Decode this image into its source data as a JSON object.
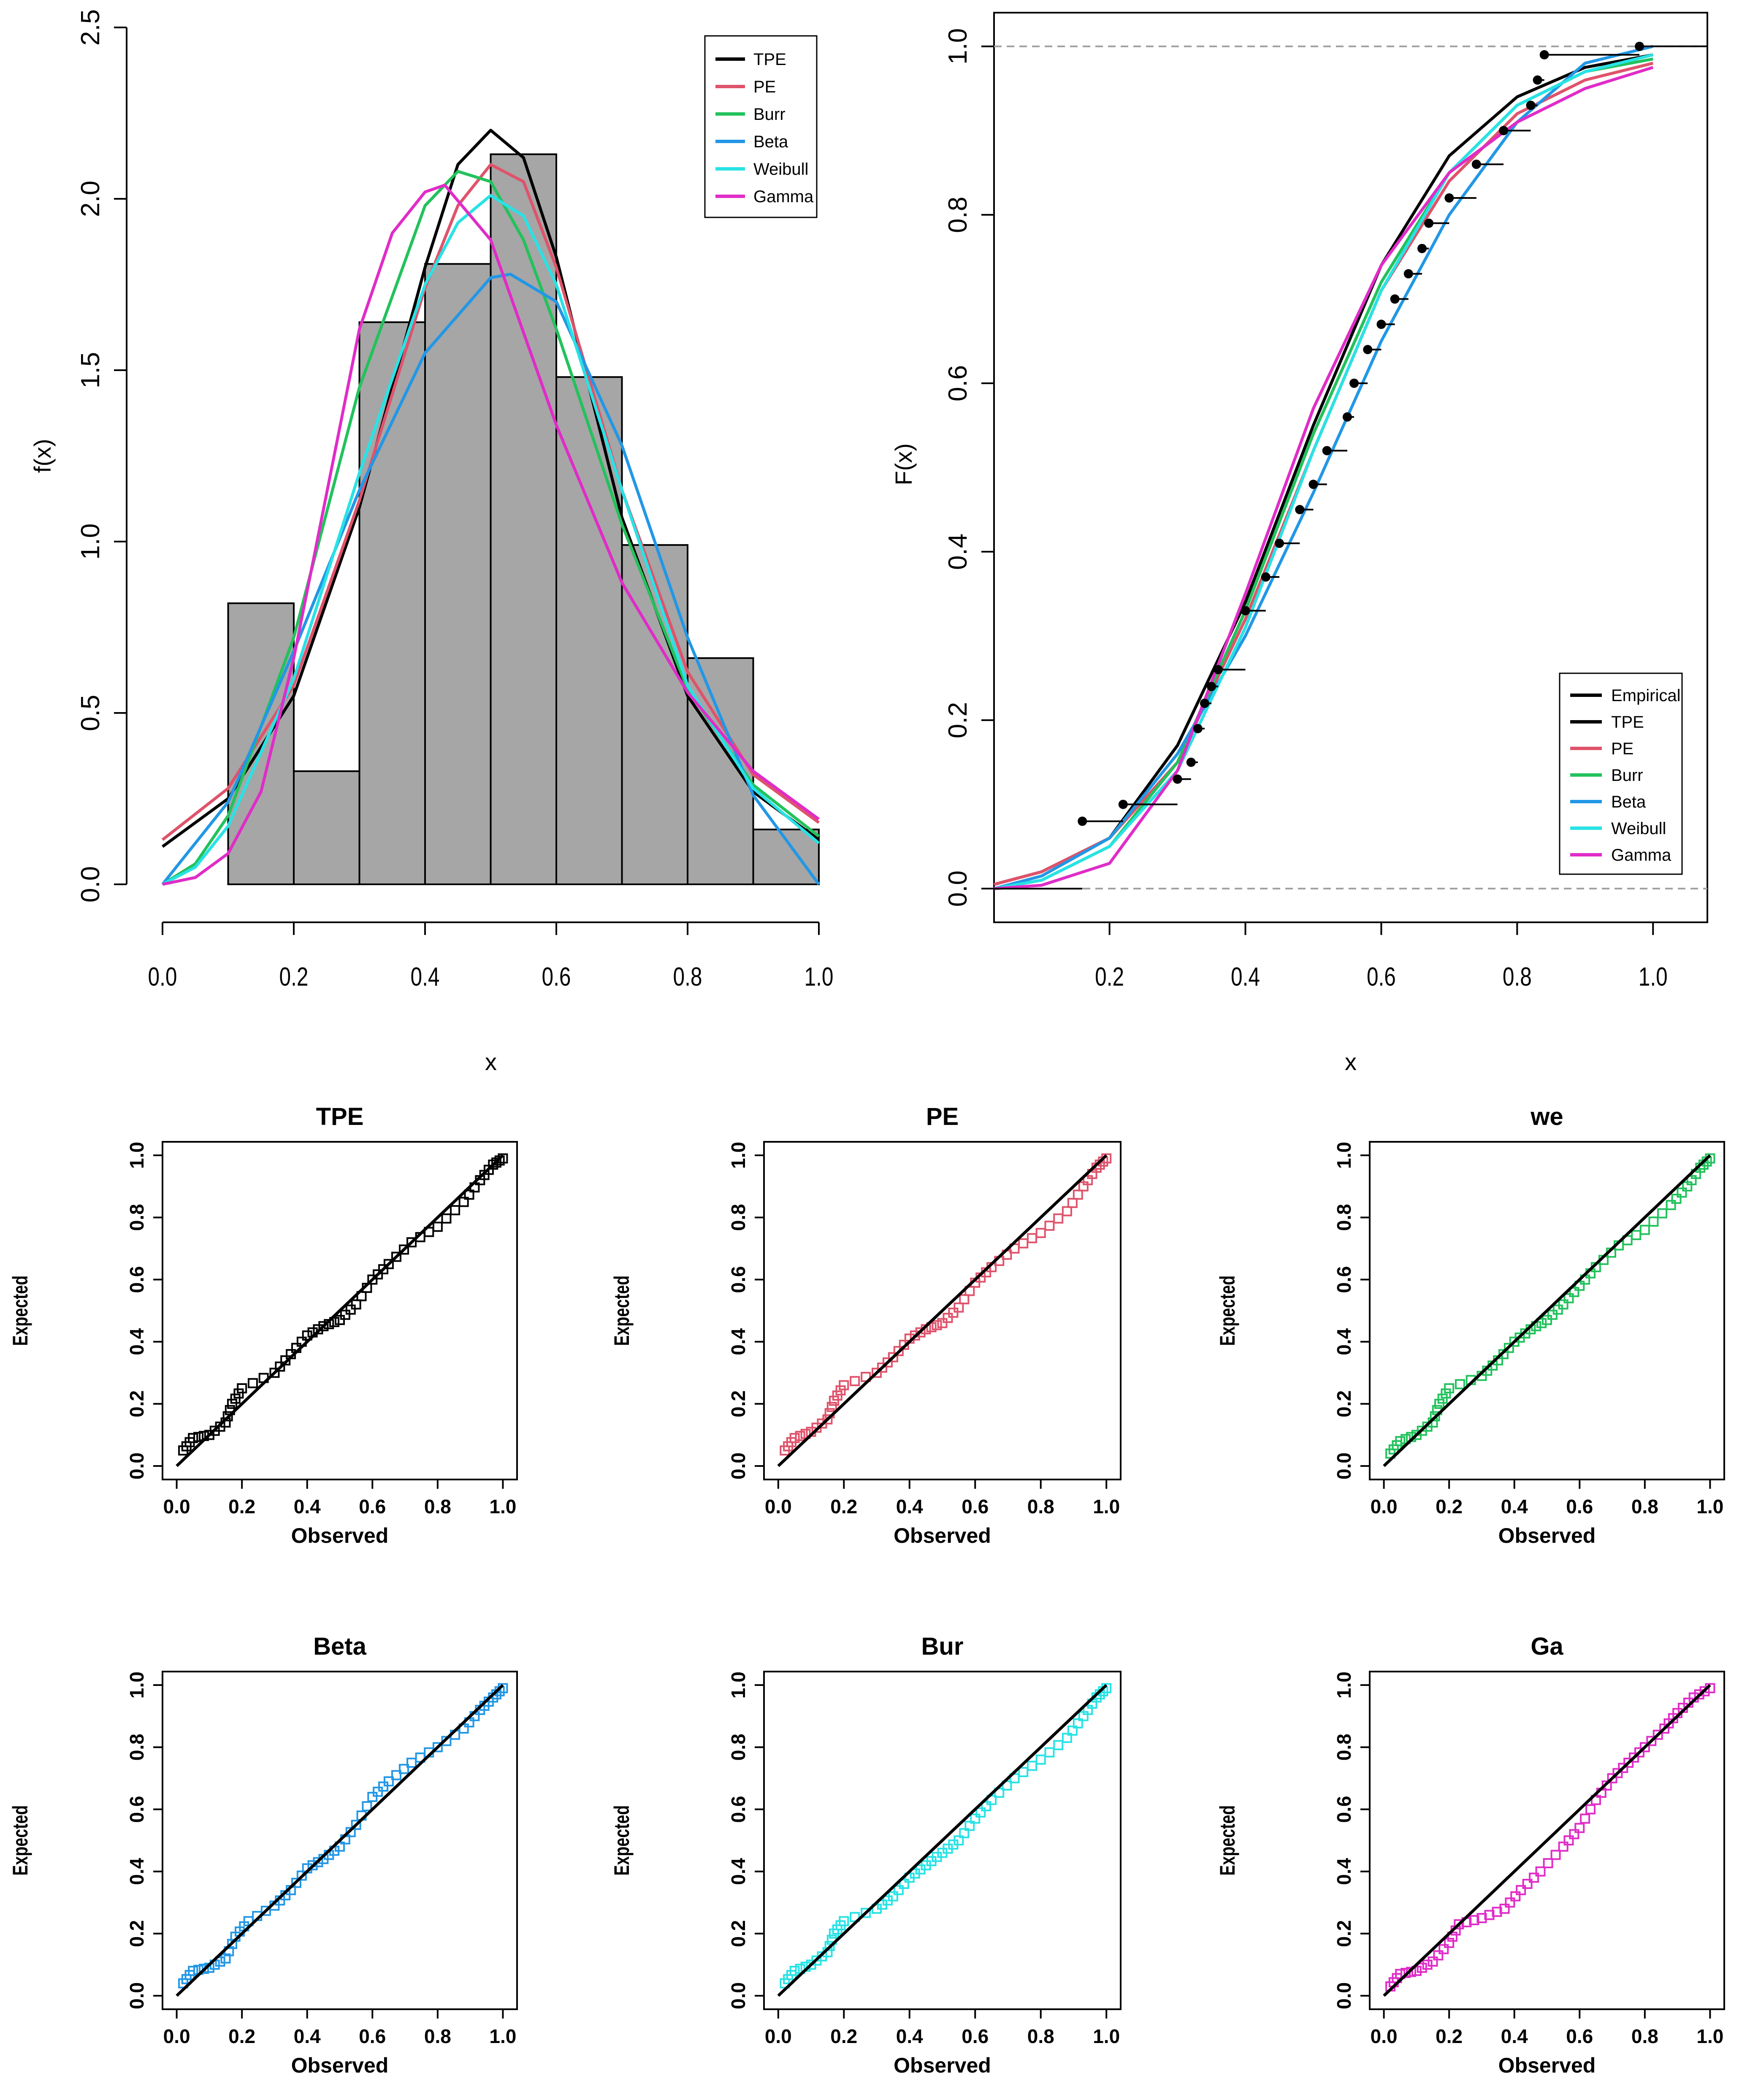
{
  "colors": {
    "TPE": "#000000",
    "PE": "#DF536B",
    "Burr": "#22C25C",
    "Beta": "#2297E6",
    "Weibull": "#28E2E5",
    "Gamma": "#E02CC8",
    "hist_fill": "#A6A6A6",
    "refline": "#A0A0A0"
  },
  "chart_data": [
    {
      "type": "bar",
      "subtype": "histogram_with_density_curves",
      "title": "",
      "xlabel": "x",
      "ylabel": "f(x)",
      "xlim": [
        0,
        1
      ],
      "ylim": [
        0,
        2.5
      ],
      "xticks": [
        "0.0",
        "0.2",
        "0.4",
        "0.6",
        "0.8",
        "1.0"
      ],
      "yticks": [
        "0.0",
        "0.5",
        "1.0",
        "1.5",
        "2.0",
        "2.5"
      ],
      "bins": [
        {
          "from": 0.1,
          "to": 0.2,
          "density": 0.82
        },
        {
          "from": 0.2,
          "to": 0.3,
          "density": 0.33
        },
        {
          "from": 0.3,
          "to": 0.4,
          "density": 1.64
        },
        {
          "from": 0.4,
          "to": 0.5,
          "density": 1.81
        },
        {
          "from": 0.5,
          "to": 0.6,
          "density": 2.13
        },
        {
          "from": 0.6,
          "to": 0.7,
          "density": 1.48
        },
        {
          "from": 0.7,
          "to": 0.8,
          "density": 0.99
        },
        {
          "from": 0.8,
          "to": 0.9,
          "density": 0.66
        },
        {
          "from": 0.9,
          "to": 1.0,
          "density": 0.16
        }
      ],
      "legend": {
        "position": "top-right",
        "entries": [
          "TPE",
          "PE",
          "Burr",
          "Beta",
          "Weibull",
          "Gamma"
        ]
      },
      "series": [
        {
          "name": "TPE",
          "x": [
            0,
            0.1,
            0.2,
            0.3,
            0.4,
            0.45,
            0.5,
            0.55,
            0.6,
            0.7,
            0.8,
            0.9,
            1.0
          ],
          "y": [
            0.11,
            0.25,
            0.55,
            1.1,
            1.8,
            2.1,
            2.2,
            2.12,
            1.83,
            1.07,
            0.55,
            0.27,
            0.13
          ]
        },
        {
          "name": "PE",
          "x": [
            0,
            0.1,
            0.2,
            0.3,
            0.4,
            0.45,
            0.5,
            0.55,
            0.6,
            0.7,
            0.8,
            0.9,
            1.0
          ],
          "y": [
            0.13,
            0.28,
            0.58,
            1.12,
            1.74,
            1.98,
            2.1,
            2.05,
            1.8,
            1.15,
            0.62,
            0.32,
            0.18
          ]
        },
        {
          "name": "Burr",
          "x": [
            0,
            0.05,
            0.1,
            0.2,
            0.3,
            0.4,
            0.45,
            0.5,
            0.55,
            0.6,
            0.7,
            0.8,
            0.9,
            1.0
          ],
          "y": [
            0,
            0.06,
            0.2,
            0.72,
            1.45,
            1.98,
            2.08,
            2.05,
            1.88,
            1.62,
            1.05,
            0.57,
            0.29,
            0.14
          ]
        },
        {
          "name": "Beta",
          "x": [
            0,
            0.1,
            0.2,
            0.3,
            0.4,
            0.5,
            0.53,
            0.6,
            0.7,
            0.8,
            0.9,
            1.0
          ],
          "y": [
            0,
            0.24,
            0.68,
            1.15,
            1.55,
            1.77,
            1.78,
            1.7,
            1.28,
            0.72,
            0.26,
            0
          ]
        },
        {
          "name": "Weibull",
          "x": [
            0,
            0.05,
            0.1,
            0.2,
            0.3,
            0.4,
            0.45,
            0.5,
            0.55,
            0.6,
            0.7,
            0.8,
            0.9,
            1.0
          ],
          "y": [
            0,
            0.05,
            0.17,
            0.6,
            1.2,
            1.75,
            1.93,
            2.01,
            1.95,
            1.75,
            1.15,
            0.58,
            0.28,
            0.12
          ]
        },
        {
          "name": "Gamma",
          "x": [
            0,
            0.05,
            0.1,
            0.15,
            0.2,
            0.3,
            0.35,
            0.4,
            0.43,
            0.5,
            0.6,
            0.7,
            0.8,
            0.9,
            1.0
          ],
          "y": [
            0,
            0.02,
            0.09,
            0.27,
            0.66,
            1.62,
            1.9,
            2.02,
            2.04,
            1.88,
            1.34,
            0.88,
            0.56,
            0.33,
            0.19
          ]
        }
      ]
    },
    {
      "type": "line",
      "subtype": "empirical_and_fitted_cdf",
      "title": "",
      "xlabel": "x",
      "ylabel": "F(x)",
      "xlim": [
        0.03,
        1.08
      ],
      "ylim": [
        -0.04,
        1.04
      ],
      "xticks": [
        "0.2",
        "0.4",
        "0.6",
        "0.8",
        "1.0"
      ],
      "yticks": [
        "0.0",
        "0.2",
        "0.4",
        "0.6",
        "0.8",
        "1.0"
      ],
      "reference_lines": [
        0,
        1
      ],
      "legend": {
        "position": "bottom-right",
        "entries": [
          "Empirical",
          "TPE",
          "PE",
          "Burr",
          "Beta",
          "Weibull",
          "Gamma"
        ]
      },
      "empirical": {
        "x": [
          0.16,
          0.22,
          0.3,
          0.32,
          0.33,
          0.34,
          0.35,
          0.36,
          0.4,
          0.43,
          0.45,
          0.48,
          0.5,
          0.52,
          0.55,
          0.56,
          0.58,
          0.6,
          0.62,
          0.64,
          0.66,
          0.67,
          0.7,
          0.74,
          0.78,
          0.82,
          0.83,
          0.84,
          0.98
        ],
        "y": [
          0.08,
          0.1,
          0.13,
          0.15,
          0.19,
          0.22,
          0.24,
          0.26,
          0.33,
          0.37,
          0.41,
          0.45,
          0.48,
          0.52,
          0.56,
          0.6,
          0.64,
          0.67,
          0.7,
          0.73,
          0.76,
          0.79,
          0.82,
          0.86,
          0.9,
          0.93,
          0.96,
          0.99,
          1.0
        ]
      },
      "series": [
        {
          "name": "TPE",
          "x": [
            0.03,
            0.1,
            0.2,
            0.3,
            0.4,
            0.5,
            0.6,
            0.7,
            0.8,
            0.9,
            1.0
          ],
          "y": [
            0.005,
            0.02,
            0.06,
            0.17,
            0.34,
            0.55,
            0.74,
            0.87,
            0.94,
            0.975,
            0.99
          ]
        },
        {
          "name": "PE",
          "x": [
            0.03,
            0.1,
            0.2,
            0.3,
            0.4,
            0.5,
            0.6,
            0.7,
            0.8,
            0.9,
            1.0
          ],
          "y": [
            0.005,
            0.02,
            0.06,
            0.15,
            0.32,
            0.52,
            0.71,
            0.84,
            0.92,
            0.96,
            0.98
          ]
        },
        {
          "name": "Burr",
          "x": [
            0.03,
            0.1,
            0.2,
            0.3,
            0.4,
            0.5,
            0.6,
            0.7,
            0.8,
            0.9,
            1.0
          ],
          "y": [
            0.0,
            0.01,
            0.05,
            0.15,
            0.33,
            0.54,
            0.72,
            0.85,
            0.93,
            0.97,
            0.985
          ]
        },
        {
          "name": "Beta",
          "x": [
            0.03,
            0.1,
            0.2,
            0.3,
            0.4,
            0.5,
            0.6,
            0.7,
            0.8,
            0.9,
            1.0
          ],
          "y": [
            0.0,
            0.015,
            0.06,
            0.16,
            0.3,
            0.47,
            0.65,
            0.8,
            0.91,
            0.98,
            1.0
          ]
        },
        {
          "name": "Weibull",
          "x": [
            0.03,
            0.1,
            0.2,
            0.3,
            0.4,
            0.5,
            0.6,
            0.7,
            0.8,
            0.9,
            1.0
          ],
          "y": [
            0.0,
            0.01,
            0.05,
            0.14,
            0.31,
            0.52,
            0.71,
            0.85,
            0.93,
            0.97,
            0.99
          ]
        },
        {
          "name": "Gamma",
          "x": [
            0.03,
            0.1,
            0.2,
            0.3,
            0.4,
            0.5,
            0.6,
            0.7,
            0.8,
            0.9,
            1.0
          ],
          "y": [
            0.0,
            0.004,
            0.03,
            0.14,
            0.35,
            0.57,
            0.74,
            0.85,
            0.91,
            0.95,
            0.975
          ]
        }
      ]
    },
    {
      "type": "scatter",
      "subtype": "pp_plot",
      "title": "TPE",
      "xlabel": "Observed",
      "ylabel": "Expected",
      "xlim": [
        0,
        1
      ],
      "ylim": [
        0,
        1
      ],
      "xticks": [
        "0.0",
        "0.2",
        "0.4",
        "0.6",
        "0.8",
        "1.0"
      ],
      "yticks": [
        "0.0",
        "0.2",
        "0.4",
        "0.6",
        "0.8",
        "1.0"
      ],
      "color_key": "TPE",
      "x": [
        0.02,
        0.05,
        0.1,
        0.15,
        0.17,
        0.2,
        0.3,
        0.35,
        0.4,
        0.45,
        0.5,
        0.55,
        0.6,
        0.65,
        0.72,
        0.8,
        0.88,
        0.93,
        0.97,
        1.0
      ],
      "y": [
        0.05,
        0.09,
        0.1,
        0.14,
        0.2,
        0.25,
        0.3,
        0.36,
        0.42,
        0.45,
        0.47,
        0.52,
        0.6,
        0.65,
        0.72,
        0.77,
        0.85,
        0.92,
        0.97,
        0.99
      ]
    },
    {
      "type": "scatter",
      "subtype": "pp_plot",
      "title": "PE",
      "xlabel": "Observed",
      "ylabel": "Expected",
      "xlim": [
        0,
        1
      ],
      "ylim": [
        0,
        1
      ],
      "xticks": [
        "0.0",
        "0.2",
        "0.4",
        "0.6",
        "0.8",
        "1.0"
      ],
      "yticks": [
        "0.0",
        "0.2",
        "0.4",
        "0.6",
        "0.8",
        "1.0"
      ],
      "color_key": "PE",
      "x": [
        0.02,
        0.05,
        0.1,
        0.15,
        0.17,
        0.2,
        0.3,
        0.35,
        0.4,
        0.45,
        0.5,
        0.55,
        0.6,
        0.65,
        0.72,
        0.8,
        0.88,
        0.93,
        0.97,
        1.0
      ],
      "y": [
        0.05,
        0.09,
        0.11,
        0.15,
        0.21,
        0.26,
        0.3,
        0.35,
        0.41,
        0.44,
        0.46,
        0.51,
        0.59,
        0.64,
        0.7,
        0.75,
        0.82,
        0.9,
        0.96,
        0.99
      ]
    },
    {
      "type": "scatter",
      "subtype": "pp_plot",
      "title": "we",
      "xlabel": "Observed",
      "ylabel": "Expected",
      "xlim": [
        0,
        1
      ],
      "ylim": [
        0,
        1
      ],
      "xticks": [
        "0.0",
        "0.2",
        "0.4",
        "0.6",
        "0.8",
        "1.0"
      ],
      "yticks": [
        "0.0",
        "0.2",
        "0.4",
        "0.6",
        "0.8",
        "1.0"
      ],
      "color_key": "Burr",
      "x": [
        0.02,
        0.05,
        0.1,
        0.15,
        0.17,
        0.2,
        0.3,
        0.35,
        0.4,
        0.45,
        0.5,
        0.55,
        0.6,
        0.65,
        0.72,
        0.8,
        0.88,
        0.93,
        0.97,
        1.0
      ],
      "y": [
        0.04,
        0.08,
        0.1,
        0.14,
        0.2,
        0.25,
        0.29,
        0.34,
        0.4,
        0.44,
        0.47,
        0.52,
        0.58,
        0.64,
        0.71,
        0.76,
        0.84,
        0.9,
        0.96,
        0.99
      ]
    },
    {
      "type": "scatter",
      "subtype": "pp_plot",
      "title": "Beta",
      "xlabel": "Observed",
      "ylabel": "Expected",
      "xlim": [
        0,
        1
      ],
      "ylim": [
        0,
        1
      ],
      "xticks": [
        "0.0",
        "0.2",
        "0.4",
        "0.6",
        "0.8",
        "1.0"
      ],
      "yticks": [
        "0.0",
        "0.2",
        "0.4",
        "0.6",
        "0.8",
        "1.0"
      ],
      "color_key": "Beta",
      "x": [
        0.02,
        0.05,
        0.1,
        0.15,
        0.18,
        0.22,
        0.3,
        0.35,
        0.4,
        0.45,
        0.5,
        0.55,
        0.6,
        0.65,
        0.72,
        0.8,
        0.88,
        0.93,
        0.97,
        1.0
      ],
      "y": [
        0.04,
        0.08,
        0.09,
        0.12,
        0.19,
        0.24,
        0.29,
        0.34,
        0.41,
        0.44,
        0.48,
        0.55,
        0.64,
        0.69,
        0.75,
        0.8,
        0.86,
        0.92,
        0.96,
        0.99
      ]
    },
    {
      "type": "scatter",
      "subtype": "pp_plot",
      "title": "Bur",
      "xlabel": "Observed",
      "ylabel": "Expected",
      "xlim": [
        0,
        1
      ],
      "ylim": [
        0,
        1
      ],
      "xticks": [
        "0.0",
        "0.2",
        "0.4",
        "0.6",
        "0.8",
        "1.0"
      ],
      "yticks": [
        "0.0",
        "0.2",
        "0.4",
        "0.6",
        "0.8",
        "1.0"
      ],
      "color_key": "Weibull",
      "x": [
        0.02,
        0.05,
        0.1,
        0.15,
        0.17,
        0.2,
        0.3,
        0.35,
        0.4,
        0.45,
        0.5,
        0.55,
        0.6,
        0.65,
        0.72,
        0.8,
        0.88,
        0.93,
        0.97,
        1.0
      ],
      "y": [
        0.04,
        0.08,
        0.1,
        0.14,
        0.2,
        0.24,
        0.28,
        0.32,
        0.38,
        0.42,
        0.46,
        0.5,
        0.57,
        0.63,
        0.7,
        0.76,
        0.83,
        0.9,
        0.96,
        0.99
      ]
    },
    {
      "type": "scatter",
      "subtype": "pp_plot",
      "title": "Ga",
      "xlabel": "Observed",
      "ylabel": "Expected",
      "xlim": [
        0,
        1
      ],
      "ylim": [
        0,
        1
      ],
      "xticks": [
        "0.0",
        "0.2",
        "0.4",
        "0.6",
        "0.8",
        "1.0"
      ],
      "yticks": [
        "0.0",
        "0.2",
        "0.4",
        "0.6",
        "0.8",
        "1.0"
      ],
      "color_key": "Gamma",
      "x": [
        0.02,
        0.05,
        0.1,
        0.15,
        0.2,
        0.23,
        0.3,
        0.37,
        0.42,
        0.48,
        0.55,
        0.6,
        0.65,
        0.7,
        0.75,
        0.8,
        0.86,
        0.9,
        0.95,
        1.0
      ],
      "y": [
        0.03,
        0.07,
        0.08,
        0.11,
        0.17,
        0.23,
        0.25,
        0.28,
        0.34,
        0.4,
        0.48,
        0.54,
        0.63,
        0.7,
        0.75,
        0.8,
        0.86,
        0.91,
        0.96,
        0.99
      ]
    }
  ]
}
